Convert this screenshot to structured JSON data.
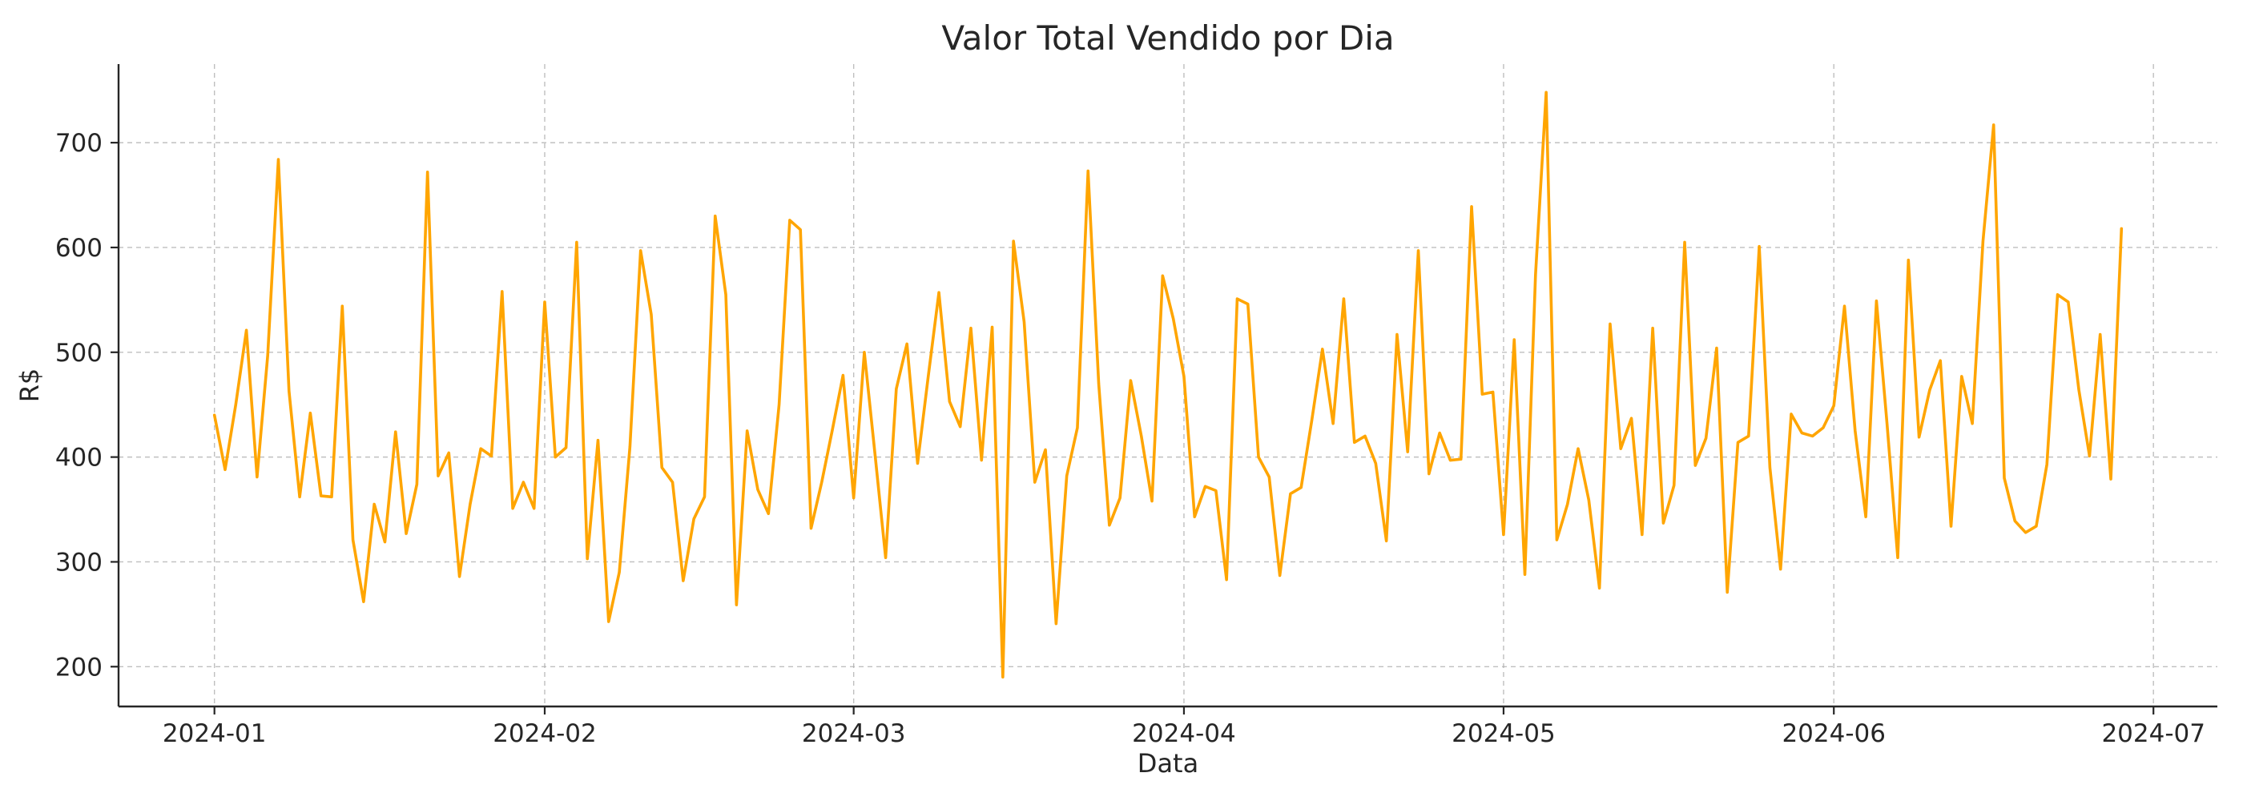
{
  "chart_data": {
    "type": "line",
    "title": "Valor Total Vendido por Dia",
    "xlabel": "Data",
    "ylabel": "R$",
    "color": "#FFA500",
    "grid": true,
    "x_start_date": "2024-01-01",
    "x_tick_labels": [
      "2024-01",
      "2024-02",
      "2024-03",
      "2024-04",
      "2024-05",
      "2024-06",
      "2024-07"
    ],
    "x_ticks": [
      "2024-01-01",
      "2024-02-01",
      "2024-03-01",
      "2024-04-01",
      "2024-05-01",
      "2024-06-01",
      "2024-07-01"
    ],
    "xlim": [
      "2023-12-23",
      "2024-07-07"
    ],
    "y_ticks": [
      200,
      300,
      400,
      500,
      600,
      700
    ],
    "ylim": [
      162,
      775
    ],
    "series": [
      {
        "name": "",
        "dates": [
          "2024-01-01",
          "2024-01-02",
          "2024-01-03",
          "2024-01-04",
          "2024-01-05",
          "2024-01-06",
          "2024-01-07",
          "2024-01-08",
          "2024-01-09",
          "2024-01-10",
          "2024-01-11",
          "2024-01-12",
          "2024-01-13",
          "2024-01-14",
          "2024-01-15",
          "2024-01-16",
          "2024-01-17",
          "2024-01-18",
          "2024-01-19",
          "2024-01-20",
          "2024-01-21",
          "2024-01-22",
          "2024-01-23",
          "2024-01-24",
          "2024-01-25",
          "2024-01-26",
          "2024-01-27",
          "2024-01-28",
          "2024-01-29",
          "2024-01-30",
          "2024-01-31",
          "2024-02-01",
          "2024-02-02",
          "2024-02-03",
          "2024-02-04",
          "2024-02-05",
          "2024-02-06",
          "2024-02-07",
          "2024-02-08",
          "2024-02-09",
          "2024-02-10",
          "2024-02-11",
          "2024-02-12",
          "2024-02-13",
          "2024-02-14",
          "2024-02-15",
          "2024-02-16",
          "2024-02-17",
          "2024-02-18",
          "2024-02-19",
          "2024-02-20",
          "2024-02-21",
          "2024-02-22",
          "2024-02-23",
          "2024-02-24",
          "2024-02-25",
          "2024-02-26",
          "2024-02-27",
          "2024-02-28",
          "2024-02-29",
          "2024-03-01",
          "2024-03-02",
          "2024-03-03",
          "2024-03-04",
          "2024-03-05",
          "2024-03-06",
          "2024-03-07",
          "2024-03-08",
          "2024-03-09",
          "2024-03-10",
          "2024-03-11",
          "2024-03-12",
          "2024-03-13",
          "2024-03-14",
          "2024-03-15",
          "2024-03-16",
          "2024-03-17",
          "2024-03-18",
          "2024-03-19",
          "2024-03-20",
          "2024-03-21",
          "2024-03-22",
          "2024-03-23",
          "2024-03-24",
          "2024-03-25",
          "2024-03-26",
          "2024-03-27",
          "2024-03-28",
          "2024-03-29",
          "2024-03-30",
          "2024-03-31",
          "2024-04-01",
          "2024-04-02",
          "2024-04-03",
          "2024-04-04",
          "2024-04-05",
          "2024-04-06",
          "2024-04-07",
          "2024-04-08",
          "2024-04-09",
          "2024-04-10",
          "2024-04-11",
          "2024-04-12",
          "2024-04-13",
          "2024-04-14",
          "2024-04-15",
          "2024-04-16",
          "2024-04-17",
          "2024-04-18",
          "2024-04-19",
          "2024-04-20",
          "2024-04-21",
          "2024-04-22",
          "2024-04-23",
          "2024-04-24",
          "2024-04-25",
          "2024-04-26",
          "2024-04-27",
          "2024-04-28",
          "2024-04-29",
          "2024-04-30",
          "2024-05-01",
          "2024-05-02",
          "2024-05-03",
          "2024-05-04",
          "2024-05-05",
          "2024-05-06",
          "2024-05-07",
          "2024-05-08",
          "2024-05-09",
          "2024-05-10",
          "2024-05-11",
          "2024-05-12",
          "2024-05-13",
          "2024-05-14",
          "2024-05-15",
          "2024-05-16",
          "2024-05-17",
          "2024-05-18",
          "2024-05-19",
          "2024-05-20",
          "2024-05-21",
          "2024-05-22",
          "2024-05-23",
          "2024-05-24",
          "2024-05-25",
          "2024-05-26",
          "2024-05-27",
          "2024-05-28",
          "2024-05-29",
          "2024-05-30",
          "2024-05-31",
          "2024-06-01",
          "2024-06-02",
          "2024-06-03",
          "2024-06-04",
          "2024-06-05",
          "2024-06-06",
          "2024-06-07",
          "2024-06-08",
          "2024-06-09",
          "2024-06-10",
          "2024-06-11",
          "2024-06-12",
          "2024-06-13",
          "2024-06-14",
          "2024-06-15",
          "2024-06-16",
          "2024-06-17",
          "2024-06-18",
          "2024-06-19",
          "2024-06-20",
          "2024-06-21",
          "2024-06-22",
          "2024-06-23",
          "2024-06-24",
          "2024-06-25",
          "2024-06-26",
          "2024-06-27",
          "2024-06-28"
        ],
        "values": [
          440,
          388,
          450,
          521,
          381,
          497,
          684,
          463,
          362,
          442,
          363,
          362,
          544,
          321,
          262,
          355,
          319,
          424,
          327,
          374,
          672,
          382,
          404,
          286,
          355,
          408,
          401,
          558,
          351,
          376,
          351,
          548,
          400,
          409,
          605,
          303,
          416,
          243,
          290,
          410,
          597,
          536,
          390,
          376,
          282,
          341,
          362,
          630,
          555,
          259,
          425,
          369,
          346,
          450,
          626,
          617,
          332,
          376,
          426,
          478,
          361,
          500,
          403,
          304,
          465,
          508,
          394,
          477,
          557,
          453,
          429,
          523,
          397,
          524,
          190,
          606,
          529,
          376,
          407,
          241,
          382,
          428,
          673,
          470,
          335,
          361,
          473,
          420,
          358,
          573,
          532,
          477,
          343,
          372,
          368,
          283,
          551,
          546,
          400,
          381,
          287,
          365,
          371,
          435,
          503,
          432,
          551,
          414,
          420,
          394,
          320,
          517,
          405,
          597,
          384,
          423,
          397,
          398,
          639,
          460,
          462,
          326,
          512,
          288,
          574,
          748,
          321,
          355,
          408,
          359,
          275,
          527,
          408,
          437,
          326,
          523,
          337,
          373,
          605,
          392,
          418,
          504,
          271,
          414,
          420,
          601,
          390,
          293,
          441,
          423,
          420,
          428,
          449,
          544,
          425,
          343,
          549,
          431,
          304,
          588,
          419,
          464,
          492,
          334,
          477,
          432,
          606,
          717,
          380,
          339,
          328,
          334,
          393,
          555,
          548,
          464,
          401,
          517,
          379,
          618
        ]
      }
    ]
  }
}
